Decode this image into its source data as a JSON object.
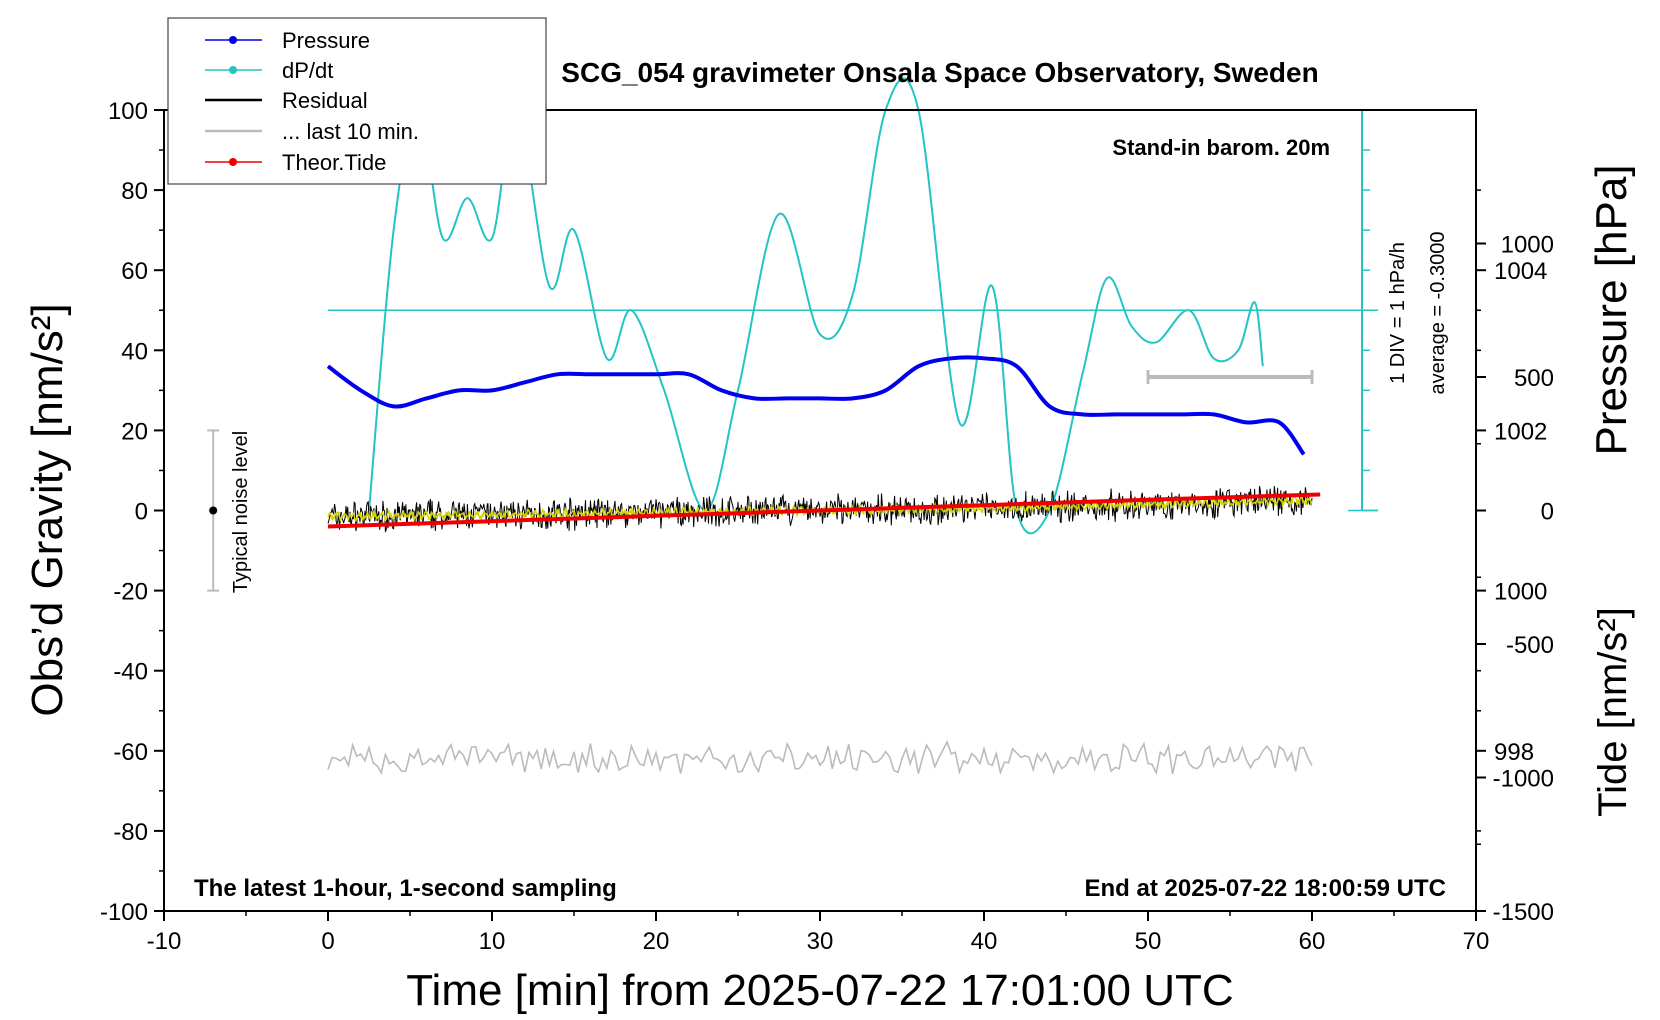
{
  "chart_data": {
    "type": "line",
    "title": "SCG_054 gravimeter Onsala Space Observatory, Sweden",
    "xlabel": "Time [min] from 2025-07-22 17:01:00 UTC",
    "ylabel_left": "Obs’d Gravity [nm/s²]",
    "ylabel_right_top": "Pressure [hPa]",
    "ylabel_right_bottom": "Tide [nm/s²]",
    "xlim": [
      -10,
      70
    ],
    "ylim": [
      -100,
      100
    ],
    "pressure_ylim": [
      996,
      1006
    ],
    "tide_ylim": [
      -1500,
      1500
    ],
    "x_ticks": [
      "-10",
      "0",
      "10",
      "20",
      "30",
      "40",
      "50",
      "60",
      "70"
    ],
    "y_ticks": [
      "-100",
      "-80",
      "-60",
      "-40",
      "-20",
      "0",
      "20",
      "40",
      "60",
      "80",
      "100"
    ],
    "pressure_ticks": [
      "998",
      "1000",
      "1002",
      "1004"
    ],
    "tide_ticks": [
      "-1500",
      "-1000",
      "-500",
      "0",
      "500",
      "1000"
    ],
    "annotations": {
      "stand_in": "Stand-in barom. 20m",
      "latest": "The latest 1-hour, 1-second sampling",
      "end_at": "End at 2025-07-22 18:00:59 UTC",
      "div_label": "1 DIV = 1 hPa/h",
      "average": "average = -0.3000",
      "noise": "Typical noise level"
    },
    "legend": [
      "Pressure",
      "dP/dt",
      "Residual",
      "... last 10 min.",
      "Theor.Tide"
    ],
    "legend_position": "top-left",
    "colors": {
      "pressure": "#0000ee",
      "dpdt": "#22c4c4",
      "residual": "#000000",
      "residual_smooth": "#d4d400",
      "last10": "#bbbbbb",
      "tide": "#ee0000"
    },
    "series": [
      {
        "name": "Pressure",
        "unit": "hPa",
        "x": [
          0,
          2,
          4,
          6,
          8,
          10,
          12,
          14,
          16,
          18,
          20,
          22,
          24,
          26,
          28,
          30,
          32,
          34,
          36,
          38,
          40,
          42,
          44,
          46,
          48,
          50,
          52,
          54,
          56,
          58,
          59.5
        ],
        "values": [
          1002.8,
          1002.5,
          1002.3,
          1002.4,
          1002.5,
          1002.5,
          1002.6,
          1002.7,
          1002.7,
          1002.7,
          1002.7,
          1002.7,
          1002.5,
          1002.4,
          1002.4,
          1002.4,
          1002.4,
          1002.5,
          1002.8,
          1002.9,
          1002.9,
          1002.8,
          1002.3,
          1002.2,
          1002.2,
          1002.2,
          1002.2,
          1002.2,
          1002.1,
          1002.1,
          1001.7
        ]
      },
      {
        "name": "dP/dt",
        "unit": "hPa/h",
        "x": [
          2.5,
          4,
          5.5,
          7,
          8.5,
          10,
          11.5,
          13.5,
          15,
          17,
          18.5,
          20.5,
          23,
          25,
          27.5,
          30,
          32,
          34,
          36,
          38.5,
          40.5,
          42,
          44,
          46,
          47.5,
          49,
          50.5,
          52.5,
          54,
          55.5,
          56.5,
          57
        ],
        "values": [
          -5.0,
          1.0,
          2.7,
          0.9,
          1.4,
          0.9,
          2.7,
          0.3,
          1.0,
          -0.6,
          0.0,
          -1.0,
          -5.0,
          -1.0,
          1.2,
          -0.3,
          0.2,
          5.0,
          5.0,
          -1.4,
          0.3,
          -5.0,
          -5.0,
          -0.8,
          0.4,
          -0.2,
          -0.4,
          0.0,
          -0.6,
          -0.5,
          0.1,
          -0.7
        ]
      },
      {
        "name": "Residual",
        "unit": "nm/s²",
        "x": [
          0,
          10,
          20,
          30,
          40,
          50,
          60
        ],
        "values": [
          -1.5,
          -1.0,
          -0.5,
          0.0,
          0.5,
          1.5,
          2.5
        ]
      },
      {
        "name": "Theor.Tide",
        "unit": "nm/s²",
        "x": [
          0,
          10,
          20,
          30,
          40,
          50,
          60.5
        ],
        "values": [
          -60,
          -40,
          -20,
          0,
          20,
          40,
          60
        ]
      }
    ]
  }
}
